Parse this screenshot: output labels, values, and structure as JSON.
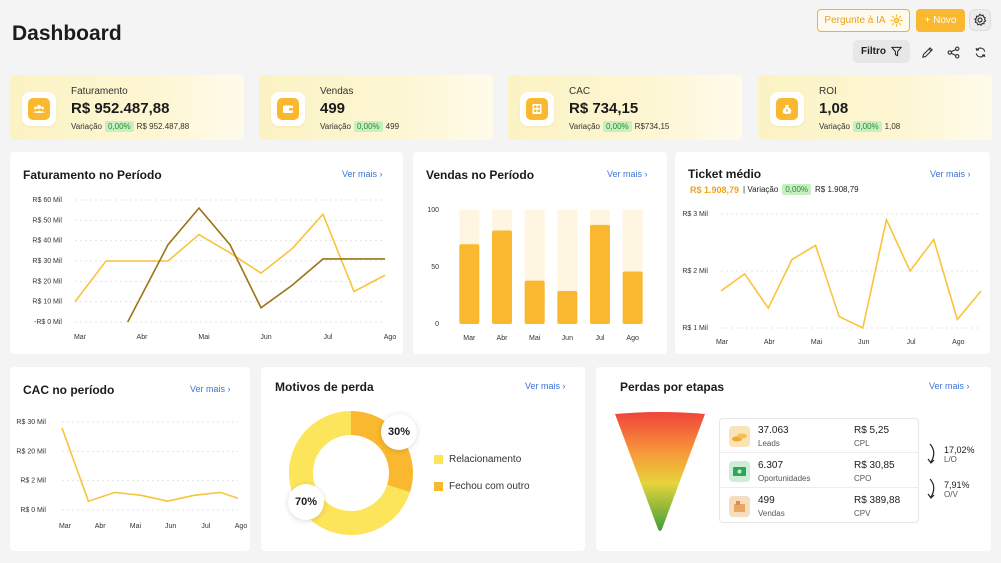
{
  "header": {
    "title": "Dashboard",
    "ask_ai_label": "Pergunte à IA",
    "new_label": "+ Novo",
    "filter_label": "Filtro"
  },
  "kpis": [
    {
      "label": "Faturamento",
      "value": "R$ 952.487,88",
      "variation_label": "Variação",
      "variation_pct": "0,00%",
      "variation_value": "R$ 952.487,88",
      "icon": "people-icon"
    },
    {
      "label": "Vendas",
      "value": "499",
      "variation_label": "Variação",
      "variation_pct": "0,00%",
      "variation_value": "499",
      "icon": "wallet-icon"
    },
    {
      "label": "CAC",
      "value": "R$ 734,15",
      "variation_label": "Variação",
      "variation_pct": "0,00%",
      "variation_value": "R$734,15",
      "icon": "calculator-icon"
    },
    {
      "label": "ROI",
      "value": "1,08",
      "variation_label": "Variação",
      "variation_pct": "0,00%",
      "variation_value": "1,08",
      "icon": "money-bag-icon"
    }
  ],
  "panels": {
    "faturamento": {
      "title": "Faturamento no Período",
      "link": "Ver mais"
    },
    "vendas": {
      "title": "Vendas no Período",
      "link": "Ver mais"
    },
    "ticket": {
      "title": "Ticket médio",
      "link": "Ver mais",
      "value": "R$ 1.908,79",
      "variation_label": "| Variação",
      "variation_pct": "0,00%",
      "variation_value": "R$ 1.908,79"
    },
    "cac": {
      "title": "CAC no período",
      "link": "Ver mais"
    },
    "motivos": {
      "title": "Motivos de perda",
      "link": "Ver mais"
    },
    "perdas": {
      "title": "Perdas por etapas",
      "link": "Ver mais"
    }
  },
  "colors": {
    "accent": "#f9b82f",
    "line_light": "#f9c43a",
    "line_dark": "#9a7416",
    "positive": "#2f8a2a",
    "link": "#3b73d9"
  },
  "chart_data": [
    {
      "type": "line",
      "title": "Faturamento no Período",
      "y_ticks": [
        "R$ 60 Mil",
        "R$ 50 Mil",
        "R$ 40 Mil",
        "R$ 30 Mil",
        "R$ 20 Mil",
        "R$ 10 Mil",
        "-R$ 0 Mil"
      ],
      "x_ticks": [
        "Mar",
        "Abr",
        "Mai",
        "Jun",
        "Jul",
        "Ago"
      ],
      "ylim": [
        0,
        60000
      ],
      "series": [
        {
          "x": [
            0,
            0.5,
            1,
            1.5,
            2,
            2.5,
            3,
            3.5,
            4,
            4.5,
            5
          ],
          "values": [
            10000,
            30000,
            30000,
            30000,
            43000,
            34000,
            24000,
            36000,
            53000,
            15000,
            23000
          ]
        },
        {
          "x": [
            0.85,
            1.5,
            2,
            2.5,
            3,
            3.5,
            4,
            4.5,
            5
          ],
          "values": [
            0,
            38000,
            56000,
            38000,
            7000,
            18000,
            31000,
            31000,
            31000
          ]
        }
      ]
    },
    {
      "type": "bar",
      "title": "Vendas no Período",
      "categories": [
        "Mar",
        "Abr",
        "Mai",
        "Jun",
        "Jul",
        "Ago"
      ],
      "y_ticks": [
        "100",
        "50",
        "0"
      ],
      "ylim": [
        0,
        100
      ],
      "values": [
        70,
        82,
        38,
        29,
        87,
        46
      ]
    },
    {
      "type": "line",
      "title": "Ticket médio",
      "y_ticks": [
        "R$ 3 Mil",
        "R$ 2 Mil",
        "R$ 1 Mil"
      ],
      "x_ticks": [
        "Mar",
        "Abr",
        "Mai",
        "Jun",
        "Jul",
        "Ago"
      ],
      "ylim": [
        1000,
        3000
      ],
      "x": [
        0,
        0.5,
        1,
        1.5,
        2,
        2.5,
        3,
        3.5,
        4,
        4.5,
        5,
        5.5
      ],
      "values": [
        1650,
        1950,
        1350,
        2200,
        2450,
        1200,
        1000,
        2900,
        2000,
        2550,
        1150,
        1650
      ]
    },
    {
      "type": "line",
      "title": "CAC no período",
      "y_ticks": [
        "R$ 30 Mil",
        "R$ 20 Mil",
        "R$ 2 Mil",
        "R$ 0 Mil"
      ],
      "x_ticks": [
        "Mar",
        "Abr",
        "Mai",
        "Jun",
        "Jul",
        "Ago"
      ],
      "x": [
        0,
        0.75,
        1.5,
        2.25,
        3,
        3.75,
        4.5,
        5
      ],
      "values": [
        2.8,
        0.3,
        0.6,
        0.5,
        0.3,
        0.5,
        0.6,
        0.4
      ]
    },
    {
      "type": "pie",
      "title": "Motivos de perda",
      "labels": [
        "Relacionamento",
        "Fechou com outro"
      ],
      "values": [
        70,
        30
      ],
      "value_labels": [
        "70%",
        "30%"
      ],
      "colors": [
        "#fce55a",
        "#f9b82f"
      ]
    }
  ],
  "funnel": {
    "rows": [
      {
        "value": "37.063",
        "label": "Leads",
        "cost": "R$ 5,25",
        "cost_label": "CPL",
        "icon": "coins-icon"
      },
      {
        "value": "6.307",
        "label": "Oportunidades",
        "cost": "R$ 30,85",
        "cost_label": "CPO",
        "icon": "money-icon"
      },
      {
        "value": "499",
        "label": "Vendas",
        "cost": "R$ 389,88",
        "cost_label": "CPV",
        "icon": "box-icon"
      }
    ],
    "conversions": [
      {
        "pct": "17,02%",
        "label": "L/O"
      },
      {
        "pct": "7,91%",
        "label": "O/V"
      }
    ]
  }
}
